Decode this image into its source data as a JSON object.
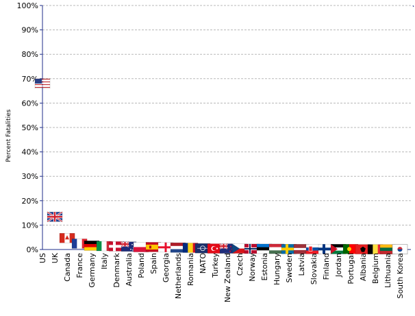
{
  "chart_data": {
    "type": "scatter",
    "ylabel": "Percent Fatalities",
    "ylim": [
      0,
      100
    ],
    "grid": true,
    "y_ticks": [
      "0%",
      "10%",
      "20%",
      "30%",
      "40%",
      "50%",
      "60%",
      "70%",
      "80%",
      "90%",
      "100%"
    ],
    "categories": [
      "US",
      "UK",
      "Canada",
      "France",
      "Germany",
      "Italy",
      "Denmark",
      "Australia",
      "Poland",
      "Spain",
      "Georgia",
      "Netherlands",
      "Romania",
      "NATO",
      "Turkey",
      "New Zealand",
      "Czech",
      "Norway",
      "Estonia",
      "Hungary",
      "Sweden",
      "Latvia",
      "Slovakia",
      "Finland",
      "Jordan",
      "Portugal",
      "Albania",
      "Belgium",
      "Lithuania",
      "South Korea"
    ],
    "values": [
      68.0,
      13.4,
      4.7,
      2.4,
      1.6,
      1.4,
      1.3,
      1.2,
      1.0,
      1.0,
      0.9,
      0.8,
      0.7,
      0.5,
      0.4,
      0.4,
      0.4,
      0.3,
      0.3,
      0.3,
      0.2,
      0.2,
      0.2,
      0.2,
      0.2,
      0.2,
      0.1,
      0.1,
      0.1,
      0.1
    ],
    "marker_icons": [
      "flag-us-icon",
      "flag-uk-icon",
      "flag-canada-icon",
      "flag-france-icon",
      "flag-germany-icon",
      "flag-italy-icon",
      "flag-denmark-icon",
      "flag-australia-icon",
      "flag-poland-icon",
      "flag-spain-icon",
      "flag-georgia-icon",
      "flag-netherlands-icon",
      "flag-romania-icon",
      "flag-nato-icon",
      "flag-turkey-icon",
      "flag-new-zealand-icon",
      "flag-czech-icon",
      "flag-norway-icon",
      "flag-estonia-icon",
      "flag-hungary-icon",
      "flag-sweden-icon",
      "flag-latvia-icon",
      "flag-slovakia-icon",
      "flag-finland-icon",
      "flag-jordan-icon",
      "flag-portugal-icon",
      "flag-albania-icon",
      "flag-belgium-icon",
      "flag-lithuania-icon",
      "flag-south-korea-icon"
    ],
    "colors": {
      "axis": "#1f2d8a",
      "grid": "#b8b8b8"
    }
  }
}
